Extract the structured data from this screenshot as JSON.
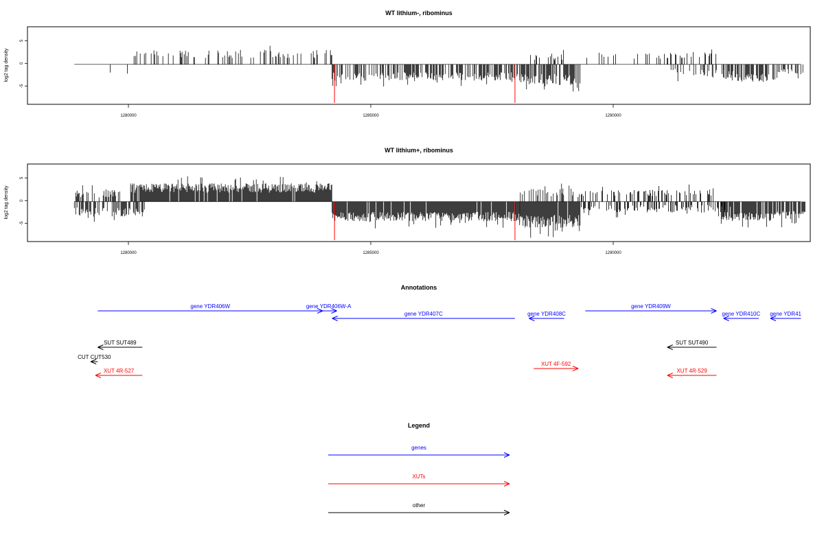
{
  "colors": {
    "genes": "#0000ff",
    "xuts": "#ff0000",
    "other": "#000000",
    "marker": "#ff0000"
  },
  "panels": [
    {
      "title": "WT lithium-, ribominus",
      "ylabel": "log2 tag density",
      "yticks": [
        "5",
        "0",
        "-5"
      ],
      "xticks": [
        "1280000",
        "1285000",
        "1290000"
      ]
    },
    {
      "title": "WT lithium+, ribominus",
      "ylabel": "log2 tag density",
      "yticks": [
        "5",
        "0",
        "-5"
      ],
      "xticks": [
        "1280000",
        "1285000",
        "1290000"
      ]
    }
  ],
  "annotations": {
    "title": "Annotations",
    "items": [
      {
        "label": "gene YDR406W",
        "kind": "genes",
        "start": 1279000,
        "end": 1283800,
        "row": 0
      },
      {
        "label": "gene YDR406W-A",
        "kind": "genes",
        "start": 1283750,
        "end": 1284100,
        "row": 0
      },
      {
        "label": "gene YDR407C",
        "kind": "genes",
        "start": 1287900,
        "end": 1284000,
        "row": 1
      },
      {
        "label": "gene YDR408C",
        "kind": "genes",
        "start": 1288950,
        "end": 1288200,
        "row": 1
      },
      {
        "label": "gene YDR409W",
        "kind": "genes",
        "start": 1289400,
        "end": 1292200,
        "row": 0
      },
      {
        "label": "gene YDR410C",
        "kind": "genes",
        "start": 1293100,
        "end": 1292350,
        "row": 1
      },
      {
        "label": "gene YDR41",
        "kind": "genes",
        "start": 1294000,
        "end": 1293350,
        "row": 1
      },
      {
        "label": "SUT SUT489",
        "kind": "other",
        "start": 1279950,
        "end": 1279000,
        "row": 2
      },
      {
        "label": "CUT CUT530",
        "kind": "other",
        "start": 1279000,
        "end": 1278850,
        "row": 3
      },
      {
        "label": "XUT 4R-527",
        "kind": "xuts",
        "start": 1279950,
        "end": 1278950,
        "row": 4
      },
      {
        "label": "XUT 4F-592",
        "kind": "xuts",
        "start": 1288300,
        "end": 1289250,
        "row": 5
      },
      {
        "label": "SUT SUT490",
        "kind": "other",
        "start": 1292200,
        "end": 1291150,
        "row": 2
      },
      {
        "label": "XUT 4R-529",
        "kind": "xuts",
        "start": 1292200,
        "end": 1291150,
        "row": 4
      }
    ]
  },
  "legend": {
    "title": "Legend",
    "items": [
      {
        "label": "genes",
        "kind": "genes"
      },
      {
        "label": "XUTs",
        "kind": "xuts"
      },
      {
        "label": "other",
        "kind": "other"
      }
    ]
  },
  "chart_data": [
    {
      "type": "bar",
      "title": "WT lithium-, ribominus",
      "xlabel": "",
      "ylabel": "log2 tag density",
      "xlim": [
        1277500,
        1294200
      ],
      "ylim": [
        -8.5,
        8
      ],
      "grid": false,
      "markers": [
        1284050,
        1287900
      ],
      "segments": [
        {
          "start": 1278500,
          "end": 1278520,
          "density": 0.2,
          "mean": 1.5,
          "spread": 0.6,
          "sign": 1
        },
        {
          "start": 1279000,
          "end": 1279700,
          "density": 0.15,
          "mean": 1.8,
          "spread": 1.0,
          "sign": -1
        },
        {
          "start": 1279700,
          "end": 1284000,
          "density": 0.28,
          "mean": 2.2,
          "spread": 0.9,
          "sign": 1
        },
        {
          "start": 1284000,
          "end": 1288000,
          "density": 0.6,
          "mean": 2.6,
          "spread": 0.9,
          "sign": -1
        },
        {
          "start": 1288200,
          "end": 1289000,
          "density": 0.3,
          "mean": 1.6,
          "spread": 0.8,
          "sign": 1
        },
        {
          "start": 1288000,
          "end": 1289300,
          "density": 0.7,
          "mean": 3.2,
          "spread": 1.2,
          "sign": -1
        },
        {
          "start": 1289300,
          "end": 1292200,
          "density": 0.22,
          "mean": 1.9,
          "spread": 0.7,
          "sign": 1
        },
        {
          "start": 1291200,
          "end": 1292700,
          "density": 0.2,
          "mean": 1.8,
          "spread": 0.8,
          "sign": -1
        },
        {
          "start": 1292300,
          "end": 1293500,
          "density": 0.6,
          "mean": 2.8,
          "spread": 0.9,
          "sign": -1
        },
        {
          "start": 1293500,
          "end": 1294100,
          "density": 0.4,
          "mean": 1.5,
          "spread": 0.6,
          "sign": -1
        }
      ]
    },
    {
      "type": "bar",
      "title": "WT lithium+, ribominus",
      "xlabel": "",
      "ylabel": "log2 tag density",
      "xlim": [
        1277500,
        1294200
      ],
      "ylim": [
        -8.5,
        8
      ],
      "grid": false,
      "markers": [
        1284050,
        1287900
      ],
      "segments": [
        {
          "start": 1278500,
          "end": 1279500,
          "density": 0.5,
          "mean": 1.8,
          "spread": 0.9,
          "sign": 1
        },
        {
          "start": 1278500,
          "end": 1280000,
          "density": 0.6,
          "mean": 2.2,
          "spread": 1.0,
          "sign": -1
        },
        {
          "start": 1279700,
          "end": 1284000,
          "density": 0.95,
          "mean": 2.9,
          "spread": 1.0,
          "sign": 1
        },
        {
          "start": 1284000,
          "end": 1288000,
          "density": 0.95,
          "mean": 3.2,
          "spread": 1.0,
          "sign": -1
        },
        {
          "start": 1288000,
          "end": 1289300,
          "density": 0.95,
          "mean": 4.2,
          "spread": 1.4,
          "sign": -1
        },
        {
          "start": 1288000,
          "end": 1289300,
          "density": 0.3,
          "mean": 1.8,
          "spread": 1.0,
          "sign": 1
        },
        {
          "start": 1289300,
          "end": 1292200,
          "density": 0.35,
          "mean": 1.9,
          "spread": 0.7,
          "sign": 1
        },
        {
          "start": 1289300,
          "end": 1292500,
          "density": 0.4,
          "mean": 1.5,
          "spread": 0.8,
          "sign": -1
        },
        {
          "start": 1292300,
          "end": 1294100,
          "density": 0.9,
          "mean": 3.0,
          "spread": 1.0,
          "sign": -1
        }
      ]
    }
  ]
}
